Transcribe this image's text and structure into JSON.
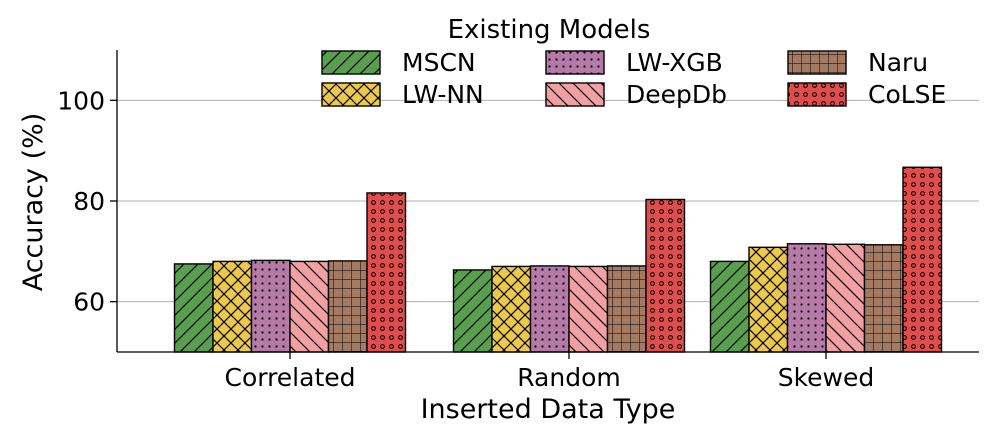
{
  "chart_data": {
    "type": "bar",
    "title": "",
    "xlabel": "Inserted Data Type",
    "ylabel": "Accuracy (%)",
    "ylim": [
      50,
      110
    ],
    "yticks": [
      60,
      80,
      100
    ],
    "grid": "horizontal",
    "categories": [
      "Correlated",
      "Random",
      "Skewed"
    ],
    "legend": {
      "title": "Existing Models",
      "placement": "top-right",
      "columns": 3
    },
    "series": [
      {
        "name": "MSCN",
        "color": "#5a9e4f",
        "pattern": "diag-fwd",
        "values": [
          67.5,
          66.3,
          68.0
        ]
      },
      {
        "name": "LW-NN",
        "color": "#ecc94b",
        "pattern": "crosshatch",
        "values": [
          68.0,
          67.0,
          70.8
        ]
      },
      {
        "name": "LW-XGB",
        "color": "#b57aa8",
        "pattern": "dots-small",
        "values": [
          68.2,
          67.1,
          71.5
        ]
      },
      {
        "name": "DeepDb",
        "color": "#f4a0a3",
        "pattern": "diag-back",
        "values": [
          68.0,
          67.0,
          71.4
        ]
      },
      {
        "name": "Naru",
        "color": "#a57a63",
        "pattern": "grid",
        "values": [
          68.1,
          67.1,
          71.3
        ]
      },
      {
        "name": "CoLSE",
        "color": "#e04d4d",
        "pattern": "dots-ring",
        "values": [
          81.6,
          80.3,
          86.7
        ]
      }
    ]
  }
}
